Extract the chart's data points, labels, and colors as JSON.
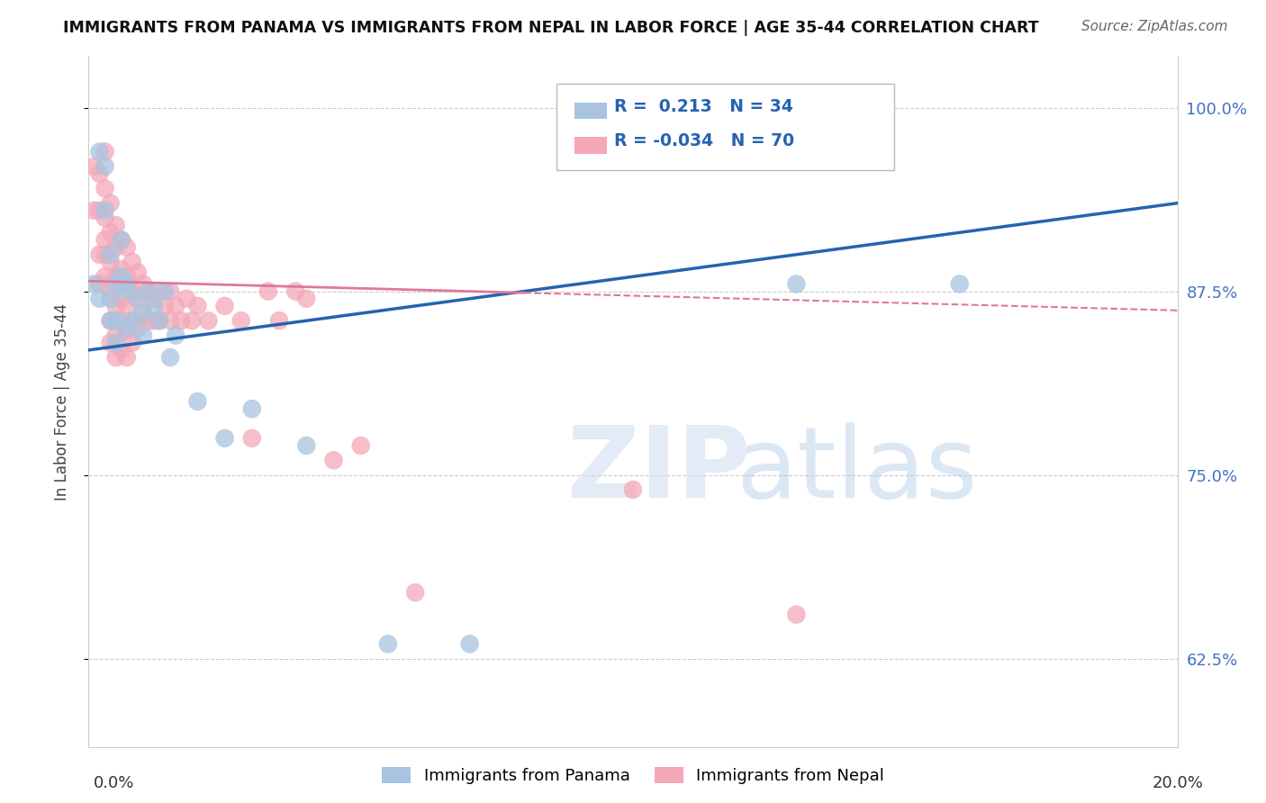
{
  "title": "IMMIGRANTS FROM PANAMA VS IMMIGRANTS FROM NEPAL IN LABOR FORCE | AGE 35-44 CORRELATION CHART",
  "source": "Source: ZipAtlas.com",
  "ylabel": "In Labor Force | Age 35-44",
  "y_ticks": [
    0.625,
    0.75,
    0.875,
    1.0
  ],
  "y_tick_labels": [
    "62.5%",
    "75.0%",
    "87.5%",
    "100.0%"
  ],
  "x_min": 0.0,
  "x_max": 0.2,
  "y_min": 0.565,
  "y_max": 1.035,
  "panama_color": "#a8c4e0",
  "nepal_color": "#f4a8b8",
  "panama_R": 0.213,
  "panama_N": 34,
  "nepal_R": -0.034,
  "nepal_N": 70,
  "panama_line_color": "#2563b0",
  "nepal_line_color": "#e07898",
  "nepal_line_solid_end": 0.08,
  "watermark_zip": "ZIP",
  "watermark_atlas": "atlas",
  "legend_label_panama": "Immigrants from Panama",
  "legend_label_nepal": "Immigrants from Nepal",
  "panama_line_y0": 0.835,
  "panama_line_y1": 0.935,
  "nepal_line_y0": 0.882,
  "nepal_line_y1": 0.862,
  "panama_scatter": [
    [
      0.001,
      0.88
    ],
    [
      0.002,
      0.87
    ],
    [
      0.002,
      0.97
    ],
    [
      0.003,
      0.96
    ],
    [
      0.003,
      0.93
    ],
    [
      0.004,
      0.9
    ],
    [
      0.004,
      0.87
    ],
    [
      0.004,
      0.855
    ],
    [
      0.005,
      0.88
    ],
    [
      0.005,
      0.855
    ],
    [
      0.005,
      0.84
    ],
    [
      0.006,
      0.91
    ],
    [
      0.006,
      0.885
    ],
    [
      0.007,
      0.88
    ],
    [
      0.007,
      0.875
    ],
    [
      0.007,
      0.85
    ],
    [
      0.008,
      0.855
    ],
    [
      0.009,
      0.87
    ],
    [
      0.01,
      0.86
    ],
    [
      0.01,
      0.845
    ],
    [
      0.011,
      0.875
    ],
    [
      0.012,
      0.865
    ],
    [
      0.013,
      0.855
    ],
    [
      0.014,
      0.875
    ],
    [
      0.015,
      0.83
    ],
    [
      0.016,
      0.845
    ],
    [
      0.02,
      0.8
    ],
    [
      0.025,
      0.775
    ],
    [
      0.03,
      0.795
    ],
    [
      0.04,
      0.77
    ],
    [
      0.055,
      0.635
    ],
    [
      0.07,
      0.635
    ],
    [
      0.13,
      0.88
    ],
    [
      0.16,
      0.88
    ]
  ],
  "nepal_scatter": [
    [
      0.001,
      0.96
    ],
    [
      0.001,
      0.93
    ],
    [
      0.002,
      0.955
    ],
    [
      0.002,
      0.93
    ],
    [
      0.002,
      0.9
    ],
    [
      0.002,
      0.88
    ],
    [
      0.003,
      0.97
    ],
    [
      0.003,
      0.945
    ],
    [
      0.003,
      0.925
    ],
    [
      0.003,
      0.91
    ],
    [
      0.003,
      0.9
    ],
    [
      0.003,
      0.885
    ],
    [
      0.004,
      0.935
    ],
    [
      0.004,
      0.915
    ],
    [
      0.004,
      0.895
    ],
    [
      0.004,
      0.875
    ],
    [
      0.004,
      0.855
    ],
    [
      0.004,
      0.84
    ],
    [
      0.005,
      0.92
    ],
    [
      0.005,
      0.905
    ],
    [
      0.005,
      0.885
    ],
    [
      0.005,
      0.865
    ],
    [
      0.005,
      0.845
    ],
    [
      0.005,
      0.83
    ],
    [
      0.006,
      0.91
    ],
    [
      0.006,
      0.89
    ],
    [
      0.006,
      0.87
    ],
    [
      0.006,
      0.855
    ],
    [
      0.006,
      0.835
    ],
    [
      0.007,
      0.905
    ],
    [
      0.007,
      0.885
    ],
    [
      0.007,
      0.865
    ],
    [
      0.007,
      0.848
    ],
    [
      0.007,
      0.83
    ],
    [
      0.008,
      0.895
    ],
    [
      0.008,
      0.875
    ],
    [
      0.008,
      0.855
    ],
    [
      0.008,
      0.84
    ],
    [
      0.009,
      0.888
    ],
    [
      0.009,
      0.87
    ],
    [
      0.009,
      0.85
    ],
    [
      0.01,
      0.88
    ],
    [
      0.01,
      0.86
    ],
    [
      0.011,
      0.875
    ],
    [
      0.011,
      0.855
    ],
    [
      0.012,
      0.87
    ],
    [
      0.012,
      0.855
    ],
    [
      0.013,
      0.875
    ],
    [
      0.013,
      0.855
    ],
    [
      0.014,
      0.865
    ],
    [
      0.015,
      0.875
    ],
    [
      0.015,
      0.855
    ],
    [
      0.016,
      0.865
    ],
    [
      0.017,
      0.855
    ],
    [
      0.018,
      0.87
    ],
    [
      0.019,
      0.855
    ],
    [
      0.02,
      0.865
    ],
    [
      0.022,
      0.855
    ],
    [
      0.025,
      0.865
    ],
    [
      0.028,
      0.855
    ],
    [
      0.03,
      0.775
    ],
    [
      0.033,
      0.875
    ],
    [
      0.035,
      0.855
    ],
    [
      0.038,
      0.875
    ],
    [
      0.04,
      0.87
    ],
    [
      0.045,
      0.76
    ],
    [
      0.05,
      0.77
    ],
    [
      0.06,
      0.67
    ],
    [
      0.1,
      0.74
    ],
    [
      0.13,
      0.655
    ]
  ]
}
